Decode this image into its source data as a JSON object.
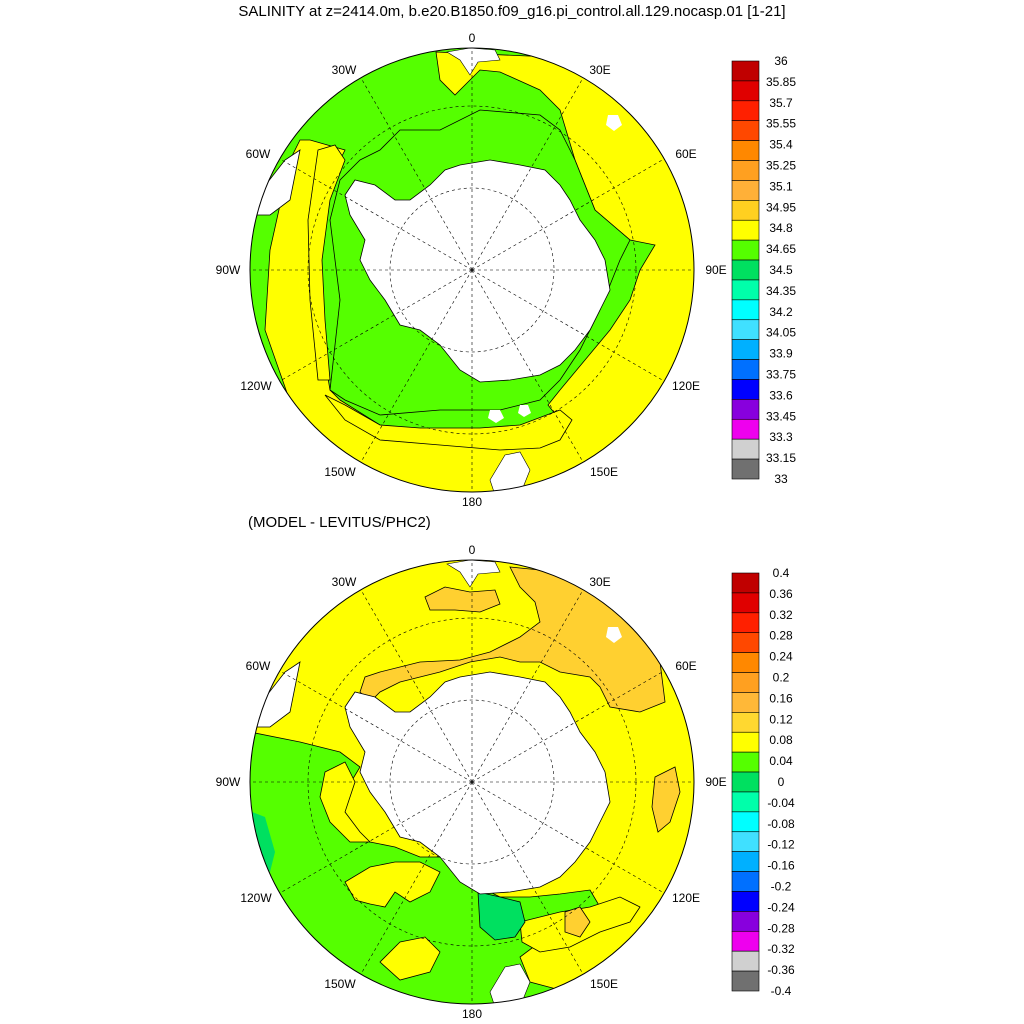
{
  "title": "SALINITY at z=2414.0m, b.e20.B1850.f09_g16.pi_control.all.129.nocasp.01 [1-21]",
  "subtitle": "(MODEL - LEVITUS/PHC2)",
  "longitude_labels": [
    "0",
    "30E",
    "60E",
    "90E",
    "120E",
    "150E",
    "180",
    "150W",
    "120W",
    "90W",
    "60W",
    "30W"
  ],
  "colors": {
    "land": "#ffffff",
    "coast": "#000000",
    "grid": "#000000"
  },
  "top_panel": {
    "legend_labels": [
      "36",
      "35.85",
      "35.7",
      "35.55",
      "35.4",
      "35.25",
      "35.1",
      "34.95",
      "34.8",
      "34.65",
      "34.5",
      "34.35",
      "34.2",
      "34.05",
      "33.9",
      "33.75",
      "33.6",
      "33.45",
      "33.3",
      "33.15",
      "33"
    ],
    "legend_colors": [
      "#c00000",
      "#e00000",
      "#ff2000",
      "#ff4800",
      "#ff8800",
      "#ffa020",
      "#ffb038",
      "#ffd020",
      "#ffff00",
      "#55ff00",
      "#00e060",
      "#00ffaa",
      "#00ffff",
      "#40e0ff",
      "#00b0ff",
      "#0070ff",
      "#0000ff",
      "#8800dd",
      "#ee00ee",
      "#d0d0d0",
      "#707070"
    ],
    "field_colors": {
      "green": "#55ff00",
      "yellow": "#ffff00"
    }
  },
  "bottom_panel": {
    "legend_labels": [
      "0.4",
      "0.36",
      "0.32",
      "0.28",
      "0.24",
      "0.2",
      "0.16",
      "0.12",
      "0.08",
      "0.04",
      "0",
      "-0.04",
      "-0.08",
      "-0.12",
      "-0.16",
      "-0.2",
      "-0.24",
      "-0.28",
      "-0.32",
      "-0.36",
      "-0.4"
    ],
    "legend_colors": [
      "#c00000",
      "#e00000",
      "#ff2000",
      "#ff4800",
      "#ff8800",
      "#ffa020",
      "#ffb838",
      "#ffd830",
      "#ffff00",
      "#55ff00",
      "#00e060",
      "#00ffaa",
      "#00ffff",
      "#40e0ff",
      "#00b0ff",
      "#0070ff",
      "#0000ff",
      "#8800dd",
      "#ee00ee",
      "#d0d0d0",
      "#707070"
    ],
    "field_colors": {
      "green": "#55ff00",
      "teal": "#00e060",
      "yellow": "#ffff00",
      "orange": "#ffd030",
      "light_orange": "#ffdd40"
    }
  }
}
